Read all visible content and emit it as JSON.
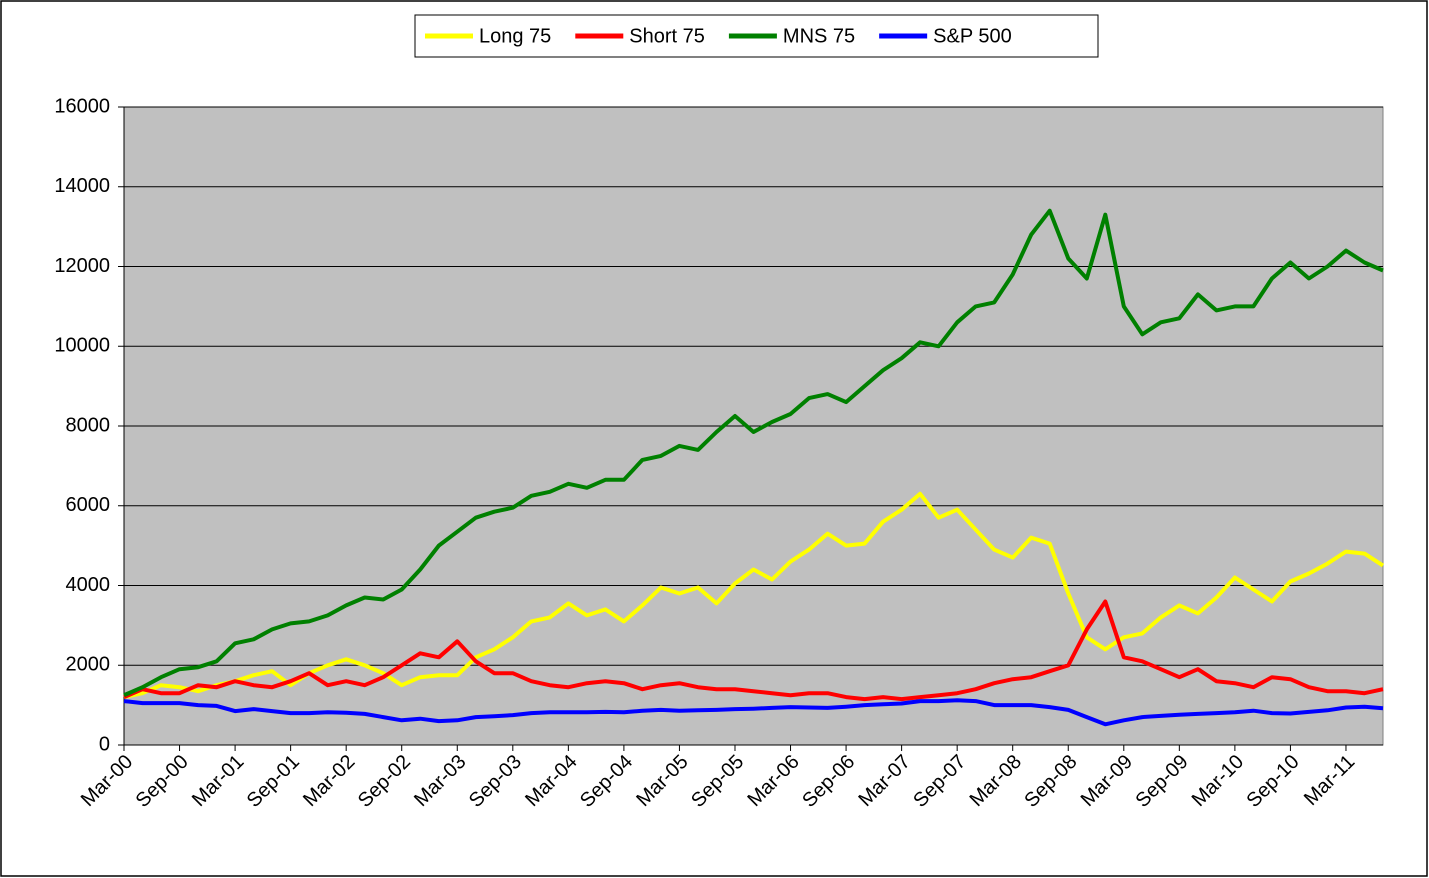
{
  "chart_data": {
    "type": "line",
    "categories": [
      "Mar-00",
      null,
      null,
      "Sep-00",
      null,
      null,
      "Mar-01",
      null,
      null,
      "Sep-01",
      null,
      null,
      "Mar-02",
      null,
      null,
      "Sep-02",
      null,
      null,
      "Mar-03",
      null,
      null,
      "Sep-03",
      null,
      null,
      "Mar-04",
      null,
      null,
      "Sep-04",
      null,
      null,
      "Mar-05",
      null,
      null,
      "Sep-05",
      null,
      null,
      "Mar-06",
      null,
      null,
      "Sep-06",
      null,
      null,
      "Mar-07",
      null,
      null,
      "Sep-07",
      null,
      null,
      "Mar-08",
      null,
      null,
      "Sep-08",
      null,
      null,
      "Mar-09",
      null,
      null,
      "Sep-09",
      null,
      null,
      "Mar-10",
      null,
      null,
      "Sep-10",
      null,
      null,
      "Mar-11",
      null,
      null
    ],
    "series": [
      {
        "name": "Long 75",
        "color": "#ffff00",
        "values": [
          1200,
          1300,
          1500,
          1450,
          1350,
          1500,
          1600,
          1750,
          1850,
          1500,
          1800,
          2000,
          2150,
          2000,
          1800,
          1500,
          1700,
          1750,
          1750,
          2200,
          2400,
          2700,
          3100,
          3200,
          3550,
          3250,
          3400,
          3100,
          3500,
          3950,
          3800,
          3950,
          3550,
          4050,
          4400,
          4150,
          4600,
          4900,
          5300,
          5000,
          5050,
          5600,
          5900,
          6300,
          5700,
          5900,
          5400,
          4900,
          4700,
          5200,
          5050,
          3800,
          2700,
          2400,
          2700,
          2800,
          3200,
          3500,
          3300,
          3700,
          4200,
          3900,
          3600,
          4100,
          4300,
          4550,
          4850,
          4800,
          4500
        ]
      },
      {
        "name": "Short 75",
        "color": "#ff0000",
        "values": [
          1200,
          1400,
          1300,
          1300,
          1500,
          1450,
          1600,
          1500,
          1450,
          1600,
          1800,
          1500,
          1600,
          1500,
          1700,
          2000,
          2300,
          2200,
          2600,
          2100,
          1800,
          1800,
          1600,
          1500,
          1450,
          1550,
          1600,
          1550,
          1400,
          1500,
          1550,
          1450,
          1400,
          1400,
          1350,
          1300,
          1250,
          1300,
          1300,
          1200,
          1150,
          1200,
          1150,
          1200,
          1250,
          1300,
          1400,
          1550,
          1650,
          1700,
          1850,
          2000,
          2900,
          3600,
          2200,
          2100,
          1900,
          1700,
          1900,
          1600,
          1550,
          1450,
          1700,
          1650,
          1450,
          1350,
          1350,
          1300,
          1400
        ]
      },
      {
        "name": "MNS 75",
        "color": "#008000",
        "values": [
          1250,
          1450,
          1700,
          1900,
          1950,
          2100,
          2550,
          2650,
          2900,
          3050,
          3100,
          3250,
          3500,
          3700,
          3650,
          3900,
          4400,
          5000,
          5350,
          5700,
          5850,
          5950,
          6250,
          6350,
          6550,
          6450,
          6650,
          6650,
          7150,
          7250,
          7500,
          7400,
          7850,
          8250,
          7850,
          8100,
          8300,
          8700,
          8800,
          8600,
          9000,
          9400,
          9700,
          10100,
          10000,
          10600,
          11000,
          11100,
          11800,
          12800,
          13400,
          12200,
          11700,
          13300,
          11000,
          10300,
          10600,
          10700,
          11300,
          10900,
          11000,
          11000,
          11700,
          12100,
          11700,
          12000,
          12400,
          12100,
          11900
        ]
      },
      {
        "name": "S&P 500",
        "color": "#0000ff",
        "values": [
          1100,
          1050,
          1050,
          1050,
          1000,
          980,
          850,
          900,
          850,
          800,
          800,
          820,
          810,
          780,
          700,
          620,
          660,
          600,
          620,
          700,
          720,
          750,
          800,
          820,
          820,
          820,
          830,
          820,
          860,
          880,
          860,
          870,
          880,
          900,
          910,
          930,
          950,
          940,
          930,
          960,
          1000,
          1020,
          1040,
          1100,
          1100,
          1120,
          1100,
          1000,
          1000,
          1000,
          950,
          880,
          700,
          520,
          620,
          700,
          730,
          760,
          780,
          800,
          820,
          860,
          800,
          790,
          830,
          870,
          940,
          960,
          920
        ]
      }
    ],
    "ylim": [
      0,
      16000
    ],
    "yticks": [
      0,
      2000,
      4000,
      6000,
      8000,
      10000,
      12000,
      14000,
      16000
    ],
    "grid": true,
    "legend": "top"
  }
}
